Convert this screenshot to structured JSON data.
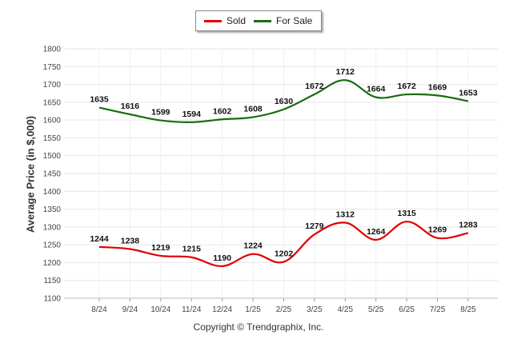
{
  "chart_data": {
    "type": "line",
    "categories": [
      "8/24",
      "9/24",
      "10/24",
      "11/24",
      "12/24",
      "1/25",
      "2/25",
      "3/25",
      "4/25",
      "5/25",
      "6/25",
      "7/25",
      "8/25"
    ],
    "series": [
      {
        "name": "Sold",
        "color": "#e00000",
        "values": [
          1244,
          1238,
          1219,
          1215,
          1190,
          1224,
          1202,
          1279,
          1312,
          1264,
          1315,
          1269,
          1283
        ]
      },
      {
        "name": "For Sale",
        "color": "#1a6b12",
        "values": [
          1635,
          1616,
          1599,
          1594,
          1602,
          1608,
          1630,
          1672,
          1712,
          1664,
          1672,
          1669,
          1653
        ]
      }
    ],
    "yticks": [
      1100,
      1150,
      1200,
      1250,
      1300,
      1350,
      1400,
      1450,
      1500,
      1550,
      1600,
      1650,
      1700,
      1750,
      1800
    ],
    "ylim": [
      1100,
      1800
    ],
    "ylabel": "Average Price (in $,000)",
    "xlabel": "",
    "grid": true,
    "legend_position": "top-center"
  },
  "footer": "Copyright © Trendgraphix, Inc."
}
